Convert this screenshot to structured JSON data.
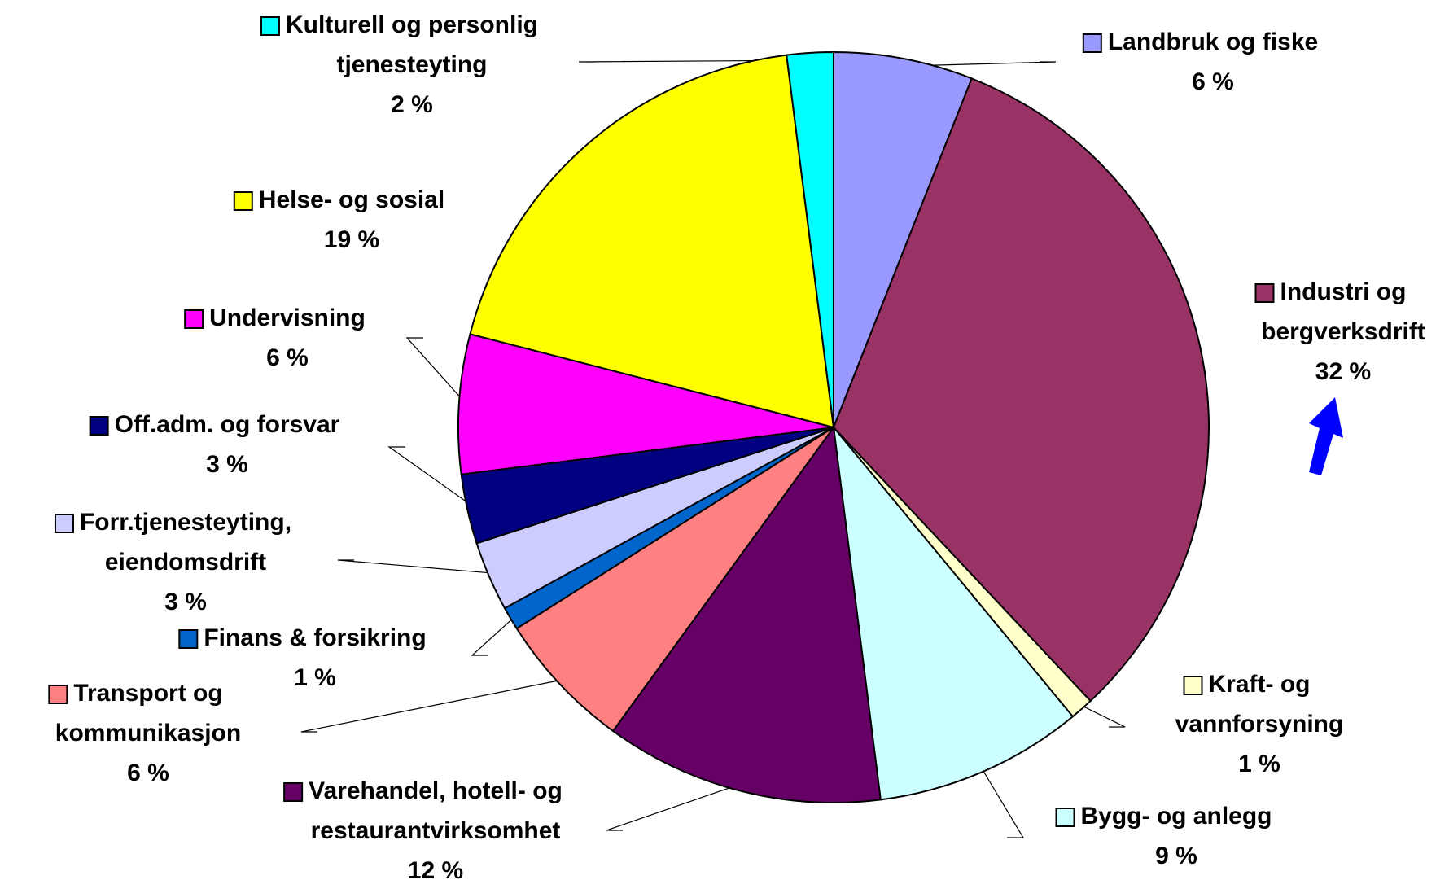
{
  "chart_data": {
    "type": "pie",
    "categories": [
      "Landbruk og fiske",
      "Industri og\nbergverksdrift",
      "Kraft- og\nvannforsyning",
      "Bygg- og anlegg",
      "Varehandel, hotell- og\nrestaurantvirksomhet",
      "Transport og\nkommunikasjon",
      "Finans & forsikring",
      "Forr.tjenesteyting,\neiendomsdrift",
      "Off.adm. og forsvar",
      "Undervisning",
      "Helse- og sosial",
      "Kulturell og personlig\ntjenesteyting"
    ],
    "values": [
      6,
      32,
      1,
      9,
      12,
      6,
      1,
      3,
      3,
      6,
      19,
      2
    ],
    "value_labels": [
      "6 %",
      "32 %",
      "1 %",
      "9 %",
      "12 %",
      "6 %",
      "1 %",
      "3 %",
      "3 %",
      "6 %",
      "19 %",
      "2 %"
    ],
    "colors": [
      "#9999ff",
      "#993366",
      "#ffffcc",
      "#ccffff",
      "#660066",
      "#ff8080",
      "#0066cc",
      "#ccccff",
      "#000080",
      "#ff00ff",
      "#ffff00",
      "#00ffff"
    ]
  }
}
